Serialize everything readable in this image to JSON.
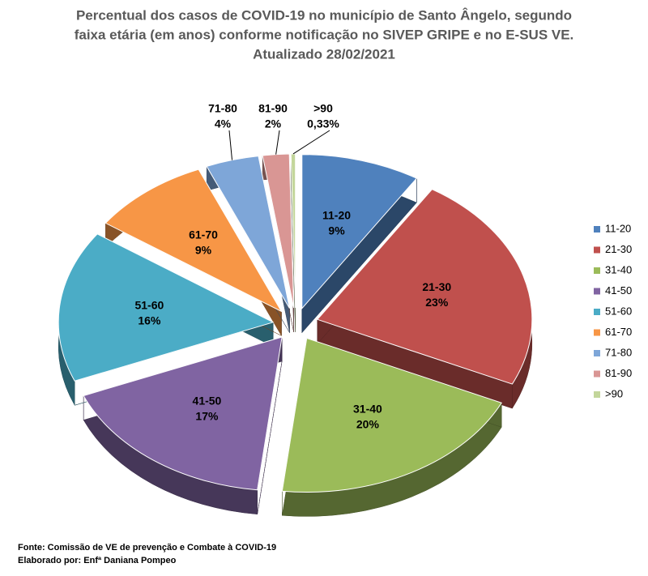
{
  "chart_data": {
    "type": "pie",
    "title": [
      "Percentual dos casos de COVID-19 no município de Santo Ângelo, segundo",
      "faixa etária (em anos) conforme notificação no SIVEP GRIPE e no E-SUS VE.",
      "Atualizado 28/02/2021"
    ],
    "categories": [
      "11-20",
      "21-30",
      "31-40",
      "41-50",
      "51-60",
      "61-70",
      "71-80",
      "81-90",
      ">90"
    ],
    "values": [
      9,
      23,
      20,
      17,
      16,
      9,
      4,
      2,
      0.33
    ],
    "value_labels": [
      "9%",
      "23%",
      "20%",
      "17%",
      "16%",
      "9%",
      "4%",
      "2%",
      "0,33%"
    ],
    "colors": [
      "#4f81bd",
      "#c0504d",
      "#9bbb59",
      "#8064a2",
      "#4bacc6",
      "#f79646",
      "#7ea6d8",
      "#d99694",
      "#c3d69b"
    ],
    "legend": "right",
    "source": "Fonte: Comissão de VE de prevenção e Combate à COVID-19",
    "credit": "Elaborado por: Enfª Daniana Pompeo"
  }
}
